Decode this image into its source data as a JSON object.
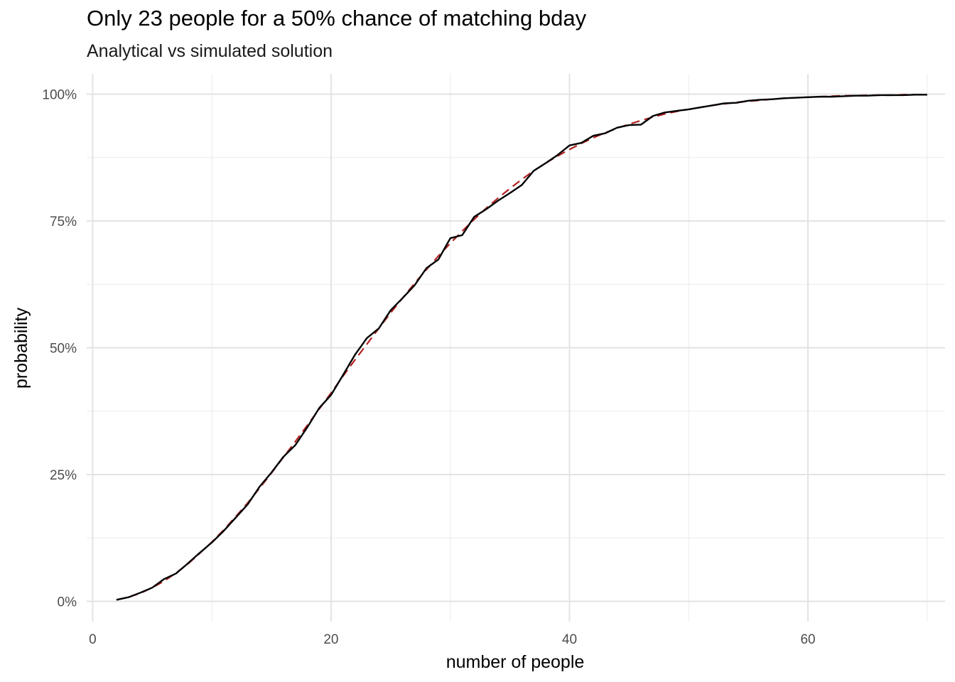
{
  "chart_data": {
    "type": "line",
    "title": "Only 23 people for a 50% chance of matching bday",
    "subtitle": "Analytical vs simulated solution",
    "xlabel": "number of people",
    "ylabel": "probability",
    "xlim": [
      -0.5,
      71.5
    ],
    "ylim": [
      -0.04,
      1.04
    ],
    "x_ticks": [
      {
        "value": 0,
        "label": "0"
      },
      {
        "value": 20,
        "label": "20"
      },
      {
        "value": 40,
        "label": "40"
      },
      {
        "value": 60,
        "label": "60"
      }
    ],
    "x_minor_ticks": [
      10,
      30,
      50,
      70
    ],
    "y_ticks": [
      {
        "value": 0,
        "label": "0%"
      },
      {
        "value": 0.25,
        "label": "25%"
      },
      {
        "value": 0.5,
        "label": "50%"
      },
      {
        "value": 0.75,
        "label": "75%"
      },
      {
        "value": 1,
        "label": "100%"
      }
    ],
    "y_minor_ticks": [
      0.125,
      0.375,
      0.625,
      0.875
    ],
    "grid": true,
    "legend": "none",
    "x": [
      2,
      3,
      4,
      5,
      6,
      7,
      8,
      9,
      10,
      11,
      12,
      13,
      14,
      15,
      16,
      17,
      18,
      19,
      20,
      21,
      22,
      23,
      24,
      25,
      26,
      27,
      28,
      29,
      30,
      31,
      32,
      33,
      34,
      35,
      36,
      37,
      38,
      39,
      40,
      41,
      42,
      43,
      44,
      45,
      46,
      47,
      48,
      49,
      50,
      51,
      52,
      53,
      54,
      55,
      56,
      57,
      58,
      59,
      60,
      61,
      62,
      63,
      64,
      65,
      66,
      67,
      68,
      69,
      70
    ],
    "series": [
      {
        "style": "solid",
        "color": "#000000",
        "values": [
          0.003,
          0.008,
          0.017,
          0.027,
          0.044,
          0.055,
          0.075,
          0.096,
          0.116,
          0.139,
          0.165,
          0.191,
          0.226,
          0.254,
          0.285,
          0.308,
          0.343,
          0.381,
          0.407,
          0.446,
          0.486,
          0.519,
          0.538,
          0.574,
          0.598,
          0.623,
          0.657,
          0.674,
          0.716,
          0.722,
          0.758,
          0.773,
          0.79,
          0.805,
          0.821,
          0.849,
          0.864,
          0.88,
          0.899,
          0.904,
          0.918,
          0.923,
          0.934,
          0.939,
          0.94,
          0.957,
          0.964,
          0.967,
          0.97,
          0.974,
          0.978,
          0.982,
          0.983,
          0.987,
          0.989,
          0.99,
          0.992,
          0.993,
          0.994,
          0.995,
          0.995,
          0.996,
          0.997,
          0.997,
          0.998,
          0.998,
          0.998,
          0.999,
          0.999
        ]
      },
      {
        "style": "dashed",
        "color": "#b22222",
        "values": [
          0.003,
          0.008,
          0.016,
          0.027,
          0.04,
          0.056,
          0.074,
          0.095,
          0.117,
          0.141,
          0.167,
          0.194,
          0.223,
          0.253,
          0.284,
          0.315,
          0.347,
          0.379,
          0.411,
          0.444,
          0.476,
          0.507,
          0.538,
          0.569,
          0.598,
          0.627,
          0.654,
          0.681,
          0.706,
          0.73,
          0.753,
          0.775,
          0.795,
          0.814,
          0.832,
          0.849,
          0.864,
          0.878,
          0.891,
          0.903,
          0.914,
          0.924,
          0.933,
          0.941,
          0.948,
          0.955,
          0.961,
          0.966,
          0.97,
          0.974,
          0.978,
          0.981,
          0.984,
          0.986,
          0.988,
          0.99,
          0.992,
          0.993,
          0.994,
          0.995,
          0.996,
          0.997,
          0.997,
          0.998,
          0.998,
          0.998,
          0.999,
          0.999,
          0.999
        ]
      }
    ]
  }
}
